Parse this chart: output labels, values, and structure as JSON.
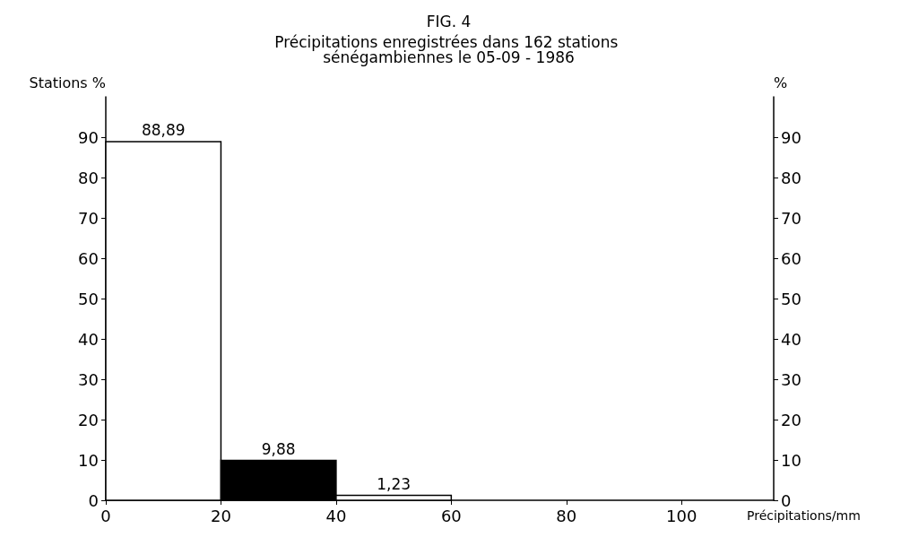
{
  "chart_data": {
    "type": "histogram",
    "title": "FIG. 4",
    "subtitle": "Précipitations enregistrées dans 162 stations sénégambiennes le 05-09 - 1986",
    "ylabel": "Stations %",
    "y2label": "%",
    "xlabel": "Précipitations/mm",
    "bins": [
      0,
      20,
      40,
      60
    ],
    "values": [
      88.89,
      9.88,
      1.23
    ],
    "value_labels": [
      "88,89",
      "9,88",
      "1,23"
    ],
    "colors": [
      "#ffffff",
      "#000000",
      "#ffffff"
    ],
    "xlim": [
      0,
      116
    ],
    "xticks": [
      0,
      20,
      40,
      60,
      80,
      100
    ],
    "ylim": [
      0,
      100
    ],
    "yticks": [
      0,
      10,
      20,
      30,
      40,
      50,
      60,
      70,
      80,
      90
    ],
    "y2lim": [
      0,
      100
    ],
    "y2ticks": [
      0,
      10,
      20,
      30,
      40,
      50,
      60,
      70,
      80,
      90
    ],
    "grid": false
  }
}
